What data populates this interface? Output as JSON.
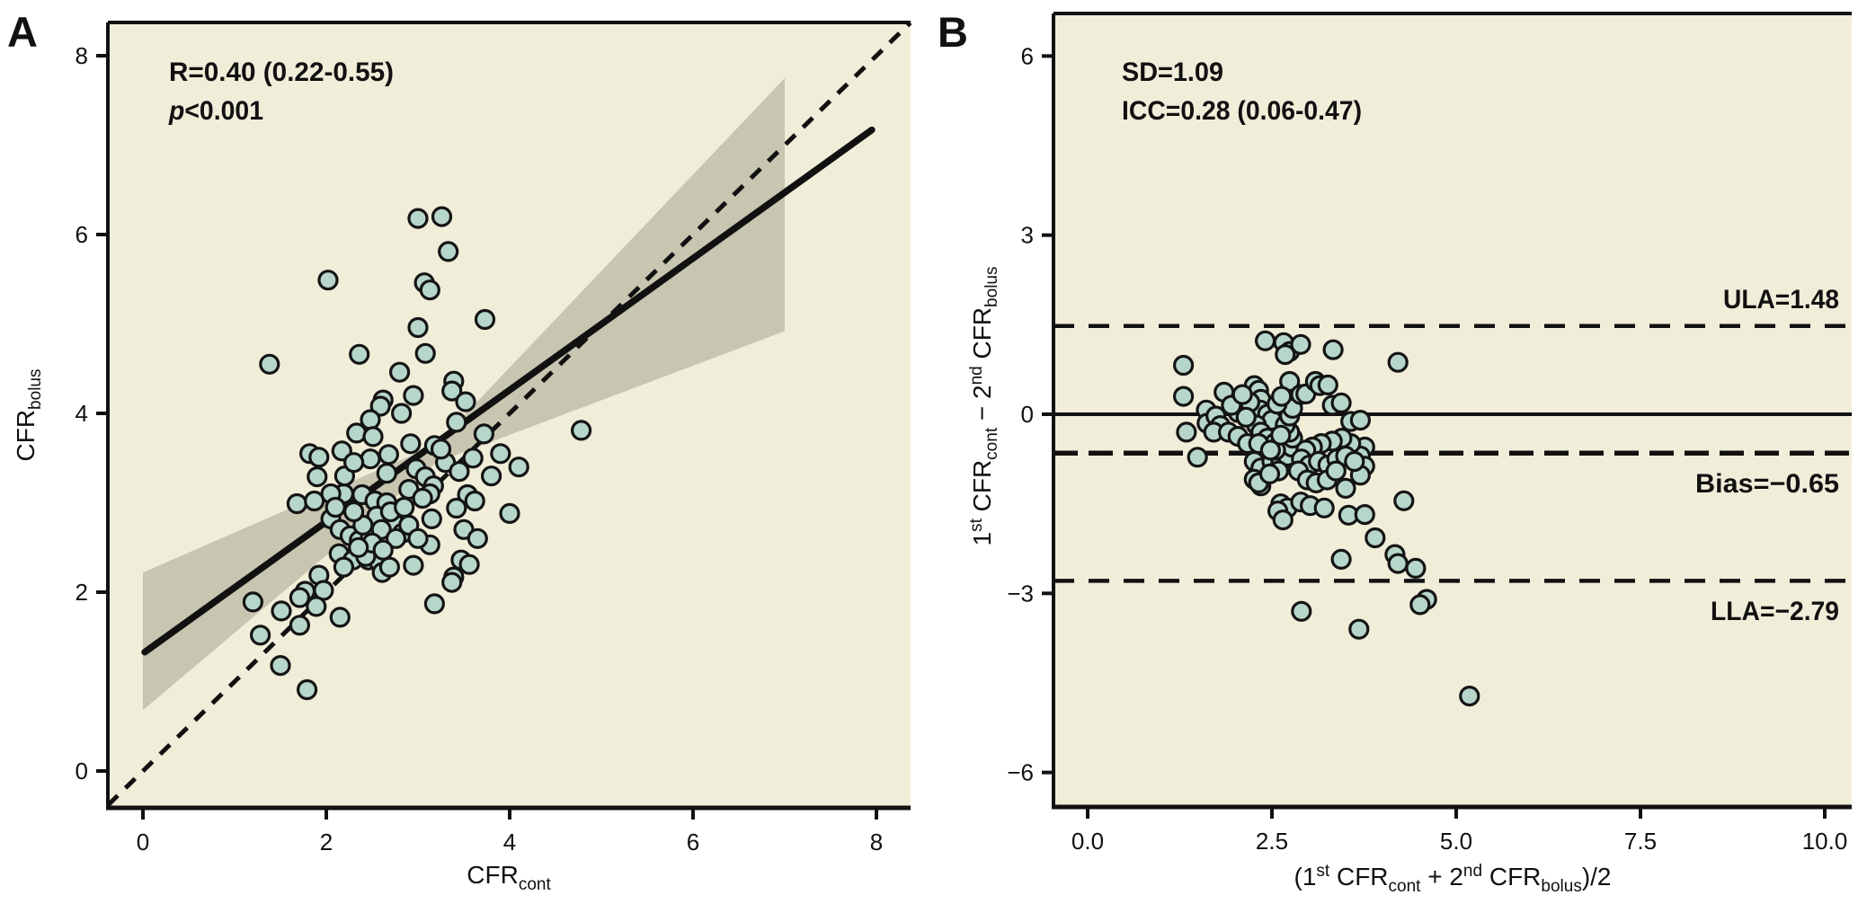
{
  "figure": {
    "description": "Two-panel scatter figure: correlation plot (A) and Bland-Altman agreement plot (B)",
    "background": "#ffffff"
  },
  "colors": {
    "panel_background": "#f0edd9",
    "confidence_band": "#c8c5b1",
    "point_fill": "#b7d6ca",
    "point_stroke": "#141414",
    "line_color": "#111111",
    "text_color": "#111111"
  },
  "chart_data": [
    {
      "panel": "A",
      "type": "scatter",
      "annotation_line1": "R=0.40 (0.22-0.55)",
      "annotation_line2_segments": [
        {
          "t": "p",
          "italic": true
        },
        {
          "t": "<0.001"
        }
      ],
      "xlabel_segments": [
        {
          "t": "CFR"
        },
        {
          "t": "cont",
          "sub": true
        }
      ],
      "ylabel_segments": [
        {
          "t": "CFR"
        },
        {
          "t": "bolus",
          "sub": true
        }
      ],
      "x_tick_labels": [
        "0",
        "2",
        "4",
        "6",
        "8"
      ],
      "x_tick_values": [
        0,
        2,
        4,
        6,
        8
      ],
      "y_tick_labels": [
        "0",
        "2",
        "4",
        "6",
        "8"
      ],
      "y_tick_values": [
        0,
        2,
        4,
        6,
        8
      ],
      "xlim": [
        -0.38,
        8.37
      ],
      "ylim": [
        -0.41,
        8.37
      ],
      "grid": false,
      "regression_line": {
        "x1": 0.02,
        "y1": 1.33,
        "x2": 7.95,
        "y2": 7.17
      },
      "identity_line": {
        "x1": -0.38,
        "y1": -0.38,
        "x2": 8.37,
        "y2": 8.37,
        "dashed": true
      },
      "confidence_band": [
        [
          0,
          0.68
        ],
        [
          3.2,
          3.45
        ],
        [
          7,
          4.92
        ],
        [
          7,
          7.75
        ],
        [
          3.2,
          3.65
        ],
        [
          0,
          2.22
        ]
      ],
      "points": [
        [
          3.0,
          6.18
        ],
        [
          3.26,
          6.2
        ],
        [
          3.33,
          5.81
        ],
        [
          2.02,
          5.49
        ],
        [
          3.07,
          5.46
        ],
        [
          3.13,
          5.38
        ],
        [
          1.38,
          4.55
        ],
        [
          3.0,
          4.96
        ],
        [
          3.73,
          5.05
        ],
        [
          2.36,
          4.66
        ],
        [
          3.08,
          4.67
        ],
        [
          2.8,
          4.46
        ],
        [
          3.39,
          4.36
        ],
        [
          3.37,
          4.25
        ],
        [
          3.52,
          4.13
        ],
        [
          2.95,
          4.2
        ],
        [
          2.62,
          4.15
        ],
        [
          2.59,
          4.08
        ],
        [
          2.82,
          4.0
        ],
        [
          2.48,
          3.93
        ],
        [
          3.42,
          3.9
        ],
        [
          2.33,
          3.78
        ],
        [
          2.51,
          3.74
        ],
        [
          3.72,
          3.77
        ],
        [
          4.78,
          3.81
        ],
        [
          2.92,
          3.66
        ],
        [
          3.18,
          3.64
        ],
        [
          1.82,
          3.55
        ],
        [
          1.92,
          3.51
        ],
        [
          2.17,
          3.58
        ],
        [
          2.48,
          3.49
        ],
        [
          2.68,
          3.54
        ],
        [
          2.66,
          3.33
        ],
        [
          2.98,
          3.38
        ],
        [
          3.08,
          3.29
        ],
        [
          1.9,
          3.29
        ],
        [
          3.17,
          3.19
        ],
        [
          3.13,
          3.1
        ],
        [
          2.19,
          3.1
        ],
        [
          2.39,
          3.09
        ],
        [
          3.54,
          3.09
        ],
        [
          2.53,
          3.02
        ],
        [
          2.66,
          3.0
        ],
        [
          3.62,
          3.02
        ],
        [
          1.68,
          2.99
        ],
        [
          1.87,
          3.02
        ],
        [
          3.42,
          2.94
        ],
        [
          4.0,
          2.88
        ],
        [
          3.15,
          2.82
        ],
        [
          2.05,
          2.82
        ],
        [
          2.75,
          2.76
        ],
        [
          2.83,
          2.66
        ],
        [
          2.15,
          2.7
        ],
        [
          2.26,
          2.63
        ],
        [
          2.36,
          2.58
        ],
        [
          2.48,
          2.61
        ],
        [
          3.13,
          2.53
        ],
        [
          3.47,
          2.36
        ],
        [
          2.14,
          2.43
        ],
        [
          2.29,
          2.36
        ],
        [
          2.46,
          2.36
        ],
        [
          2.58,
          2.33
        ],
        [
          2.19,
          2.28
        ],
        [
          3.39,
          2.17
        ],
        [
          3.37,
          2.11
        ],
        [
          3.56,
          2.31
        ],
        [
          2.61,
          2.22
        ],
        [
          2.69,
          2.28
        ],
        [
          2.43,
          2.4
        ],
        [
          1.92,
          2.19
        ],
        [
          1.97,
          2.02
        ],
        [
          1.77,
          2.01
        ],
        [
          1.89,
          1.84
        ],
        [
          1.2,
          1.89
        ],
        [
          1.28,
          1.52
        ],
        [
          1.51,
          1.79
        ],
        [
          1.71,
          1.94
        ],
        [
          1.71,
          1.63
        ],
        [
          1.5,
          1.18
        ],
        [
          1.79,
          0.91
        ],
        [
          2.15,
          1.72
        ],
        [
          3.18,
          1.87
        ],
        [
          2.55,
          2.85
        ],
        [
          2.7,
          2.9
        ],
        [
          2.85,
          2.95
        ],
        [
          2.6,
          2.7
        ],
        [
          2.76,
          2.6
        ],
        [
          2.9,
          2.75
        ],
        [
          3.0,
          2.6
        ],
        [
          2.4,
          2.75
        ],
        [
          2.3,
          2.9
        ],
        [
          2.5,
          2.55
        ],
        [
          2.35,
          2.5
        ],
        [
          2.62,
          2.47
        ],
        [
          2.9,
          3.15
        ],
        [
          3.05,
          3.05
        ],
        [
          2.2,
          3.3
        ],
        [
          2.3,
          3.45
        ],
        [
          2.05,
          3.1
        ],
        [
          2.1,
          2.95
        ],
        [
          3.3,
          3.45
        ],
        [
          3.25,
          3.6
        ],
        [
          3.45,
          3.35
        ],
        [
          3.6,
          3.5
        ],
        [
          3.5,
          2.7
        ],
        [
          3.65,
          2.6
        ],
        [
          3.8,
          3.3
        ],
        [
          3.9,
          3.55
        ],
        [
          4.1,
          3.4
        ],
        [
          2.95,
          2.3
        ]
      ]
    },
    {
      "panel": "B",
      "type": "scatter",
      "annotation_line1": "SD=1.09",
      "annotation_line2": "ICC=0.28 (0.06-0.47)",
      "xlabel_segments": [
        {
          "t": "(1"
        },
        {
          "t": "st",
          "sup": true
        },
        {
          "t": " CFR"
        },
        {
          "t": "cont",
          "sub": true
        },
        {
          "t": " + 2"
        },
        {
          "t": "nd",
          "sup": true
        },
        {
          "t": " CFR"
        },
        {
          "t": "bolus",
          "sub": true
        },
        {
          "t": ")/2"
        }
      ],
      "ylabel_segments": [
        {
          "t": "1"
        },
        {
          "t": "st",
          "sup": true
        },
        {
          "t": " CFR"
        },
        {
          "t": "cont",
          "sub": true
        },
        {
          "t": " − 2"
        },
        {
          "t": "nd",
          "sup": true
        },
        {
          "t": " CFR"
        },
        {
          "t": "bolus",
          "sub": true
        }
      ],
      "x_tick_labels": [
        "0.0",
        "2.5",
        "5.0",
        "7.5",
        "10.0"
      ],
      "x_tick_values": [
        0,
        2.5,
        5,
        7.5,
        10
      ],
      "y_tick_labels": [
        "6",
        "3",
        "0",
        "−3",
        "−6"
      ],
      "y_tick_values": [
        6,
        3,
        0,
        -3,
        -6
      ],
      "xlim": [
        -0.46,
        10.37
      ],
      "ylim": [
        -6.57,
        6.67
      ],
      "grid": false,
      "hlines": [
        {
          "y": 0,
          "style": "solid",
          "label": ""
        },
        {
          "y": 1.48,
          "style": "dashed",
          "label": "ULA=1.48",
          "label_side": "above"
        },
        {
          "y": -0.65,
          "style": "dashed",
          "label": "Bias=−0.65",
          "label_side": "below"
        },
        {
          "y": -2.79,
          "style": "dashed",
          "label": "LLA=−2.79",
          "label_side": "below"
        }
      ],
      "points": [
        [
          1.3,
          0.82
        ],
        [
          1.3,
          0.3
        ],
        [
          1.34,
          -0.3
        ],
        [
          1.49,
          -0.72
        ],
        [
          1.61,
          0.07
        ],
        [
          1.62,
          -0.15
        ],
        [
          1.74,
          -0.03
        ],
        [
          1.8,
          -0.19
        ],
        [
          1.85,
          0.37
        ],
        [
          1.71,
          -0.3
        ],
        [
          1.91,
          -0.3
        ],
        [
          2.04,
          0.03
        ],
        [
          2.04,
          -0.37
        ],
        [
          2.17,
          -0.49
        ],
        [
          2.26,
          0.48
        ],
        [
          2.32,
          0.4
        ],
        [
          2.35,
          0.25
        ],
        [
          2.34,
          0.07
        ],
        [
          2.44,
          0.0
        ],
        [
          2.5,
          -0.1
        ],
        [
          2.29,
          -0.18
        ],
        [
          2.35,
          -0.3
        ],
        [
          2.44,
          -0.4
        ],
        [
          2.54,
          -0.48
        ],
        [
          2.32,
          -0.49
        ],
        [
          2.26,
          -0.79
        ],
        [
          2.35,
          -0.9
        ],
        [
          2.5,
          -0.79
        ],
        [
          2.62,
          -0.82
        ],
        [
          2.71,
          -0.7
        ],
        [
          2.77,
          -0.55
        ],
        [
          2.78,
          -0.4
        ],
        [
          2.74,
          -0.3
        ],
        [
          2.68,
          -0.18
        ],
        [
          2.74,
          -0.03
        ],
        [
          2.78,
          0.1
        ],
        [
          2.74,
          0.55
        ],
        [
          2.89,
          0.33
        ],
        [
          2.96,
          0.34
        ],
        [
          3.09,
          0.55
        ],
        [
          3.15,
          0.48
        ],
        [
          3.26,
          0.49
        ],
        [
          3.32,
          0.15
        ],
        [
          3.44,
          0.19
        ],
        [
          3.57,
          -0.12
        ],
        [
          3.7,
          -0.1
        ],
        [
          3.76,
          -0.55
        ],
        [
          3.7,
          -0.7
        ],
        [
          3.76,
          -0.87
        ],
        [
          3.7,
          -1.02
        ],
        [
          3.57,
          -0.49
        ],
        [
          3.45,
          -0.4
        ],
        [
          3.32,
          -0.45
        ],
        [
          3.17,
          -0.49
        ],
        [
          3.05,
          -0.55
        ],
        [
          2.96,
          -0.6
        ],
        [
          2.9,
          -0.75
        ],
        [
          3.01,
          -0.85
        ],
        [
          3.13,
          -0.79
        ],
        [
          3.26,
          -0.85
        ],
        [
          3.38,
          -0.75
        ],
        [
          3.5,
          -0.7
        ],
        [
          3.62,
          -0.79
        ],
        [
          2.41,
          1.23
        ],
        [
          2.66,
          1.2
        ],
        [
          2.74,
          1.05
        ],
        [
          2.89,
          1.17
        ],
        [
          2.68,
          1.0
        ],
        [
          3.33,
          1.08
        ],
        [
          4.21,
          0.87
        ],
        [
          2.26,
          -1.09
        ],
        [
          2.35,
          -1.2
        ],
        [
          2.32,
          -1.15
        ],
        [
          2.62,
          -1.5
        ],
        [
          2.71,
          -1.57
        ],
        [
          2.58,
          -1.62
        ],
        [
          2.65,
          -1.77
        ],
        [
          2.89,
          -1.47
        ],
        [
          3.02,
          -1.53
        ],
        [
          3.21,
          -1.57
        ],
        [
          3.5,
          -1.24
        ],
        [
          3.54,
          -1.69
        ],
        [
          3.76,
          -1.68
        ],
        [
          3.9,
          -2.07
        ],
        [
          4.17,
          -2.35
        ],
        [
          4.21,
          -2.5
        ],
        [
          4.45,
          -2.58
        ],
        [
          3.44,
          -2.43
        ],
        [
          4.29,
          -1.45
        ],
        [
          4.6,
          -3.1
        ],
        [
          4.51,
          -3.19
        ],
        [
          2.9,
          -3.3
        ],
        [
          3.68,
          -3.6
        ],
        [
          5.18,
          -4.72
        ],
        [
          2.55,
          -0.6
        ],
        [
          2.62,
          -0.35
        ],
        [
          2.48,
          -0.6
        ],
        [
          2.59,
          -0.95
        ],
        [
          2.47,
          -1.0
        ],
        [
          2.86,
          -0.95
        ],
        [
          2.98,
          -1.1
        ],
        [
          3.1,
          -1.15
        ],
        [
          3.25,
          -1.1
        ],
        [
          3.37,
          -0.95
        ],
        [
          2.2,
          0.2
        ],
        [
          2.15,
          -0.05
        ],
        [
          1.95,
          0.15
        ],
        [
          2.1,
          0.33
        ],
        [
          2.57,
          0.17
        ],
        [
          2.63,
          0.3
        ]
      ]
    }
  ]
}
